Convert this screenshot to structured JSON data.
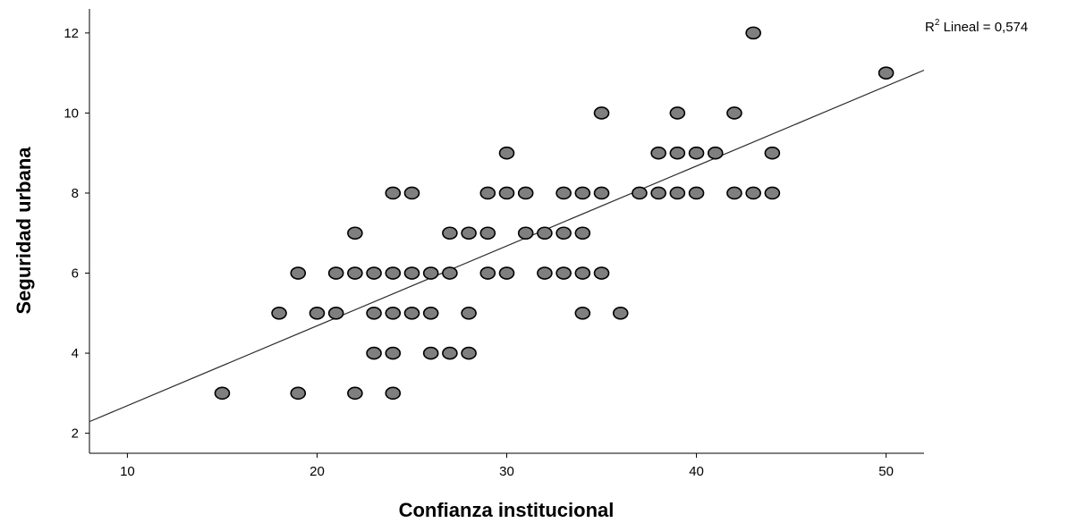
{
  "chart_data": {
    "type": "scatter",
    "xlabel": "Confianza institucional",
    "ylabel": "Seguridad urbana",
    "xlim": [
      8,
      52
    ],
    "ylim": [
      1.5,
      12.6
    ],
    "xticks": [
      10,
      20,
      30,
      40,
      50
    ],
    "yticks": [
      2,
      4,
      6,
      8,
      10,
      12
    ],
    "grid": false,
    "annotation": {
      "r": "R",
      "sup": "2",
      "text": " Lineal = 0,574"
    },
    "fit_line": {
      "x": [
        8,
        52
      ],
      "y": [
        2.29,
        11.07
      ]
    },
    "points": [
      [
        15,
        3
      ],
      [
        19,
        3
      ],
      [
        22,
        3
      ],
      [
        24,
        3
      ],
      [
        23,
        4
      ],
      [
        24,
        4
      ],
      [
        26,
        4
      ],
      [
        27,
        4
      ],
      [
        28,
        4
      ],
      [
        18,
        5
      ],
      [
        20,
        5
      ],
      [
        21,
        5
      ],
      [
        23,
        5
      ],
      [
        24,
        5
      ],
      [
        25,
        5
      ],
      [
        26,
        5
      ],
      [
        28,
        5
      ],
      [
        34,
        5
      ],
      [
        36,
        5
      ],
      [
        19,
        6
      ],
      [
        21,
        6
      ],
      [
        22,
        6
      ],
      [
        23,
        6
      ],
      [
        24,
        6
      ],
      [
        25,
        6
      ],
      [
        26,
        6
      ],
      [
        27,
        6
      ],
      [
        29,
        6
      ],
      [
        30,
        6
      ],
      [
        32,
        6
      ],
      [
        33,
        6
      ],
      [
        34,
        6
      ],
      [
        35,
        6
      ],
      [
        22,
        7
      ],
      [
        27,
        7
      ],
      [
        28,
        7
      ],
      [
        29,
        7
      ],
      [
        31,
        7
      ],
      [
        32,
        7
      ],
      [
        33,
        7
      ],
      [
        34,
        7
      ],
      [
        24,
        8
      ],
      [
        25,
        8
      ],
      [
        29,
        8
      ],
      [
        30,
        8
      ],
      [
        31,
        8
      ],
      [
        33,
        8
      ],
      [
        34,
        8
      ],
      [
        35,
        8
      ],
      [
        37,
        8
      ],
      [
        38,
        8
      ],
      [
        39,
        8
      ],
      [
        40,
        8
      ],
      [
        42,
        8
      ],
      [
        43,
        8
      ],
      [
        44,
        8
      ],
      [
        30,
        9
      ],
      [
        38,
        9
      ],
      [
        39,
        9
      ],
      [
        40,
        9
      ],
      [
        41,
        9
      ],
      [
        44,
        9
      ],
      [
        35,
        10
      ],
      [
        39,
        10
      ],
      [
        42,
        10
      ],
      [
        50,
        11
      ],
      [
        43,
        12
      ]
    ]
  }
}
